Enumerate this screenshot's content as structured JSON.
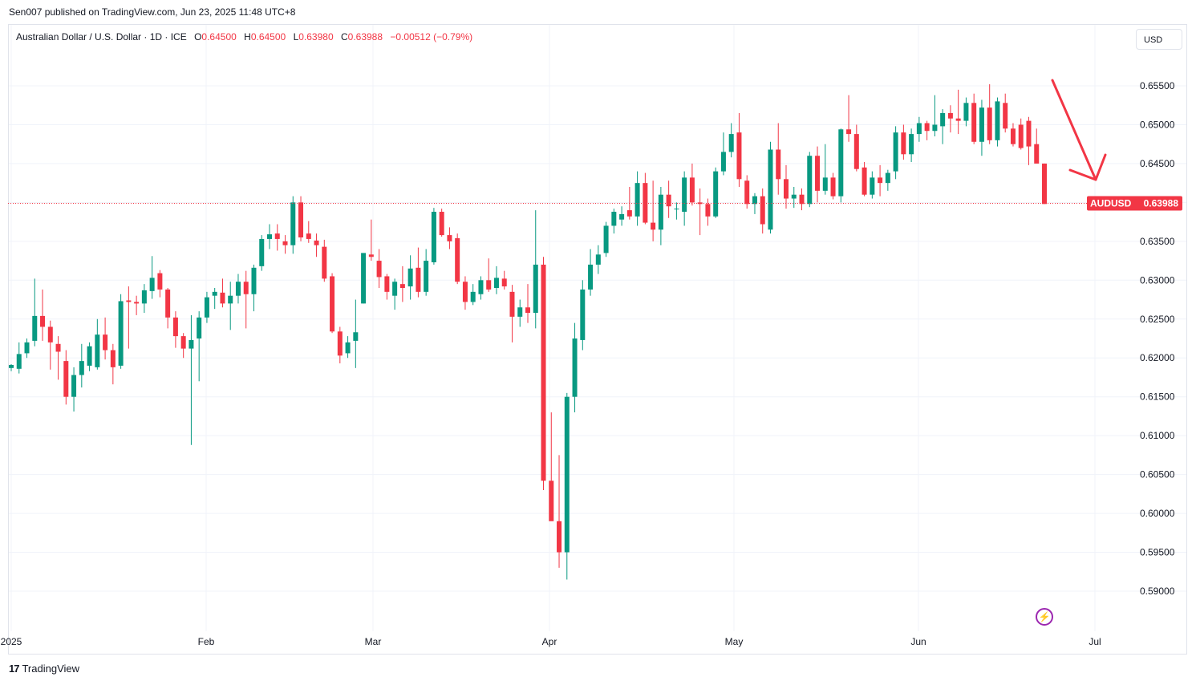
{
  "header": {
    "published_text": "Sen007 published on TradingView.com, Jun 23, 2025 11:48 UTC+8"
  },
  "legend": {
    "symbol_desc": "Australian Dollar / U.S. Dollar · 1D · ICE",
    "o_label": "O",
    "o_value": "0.64500",
    "h_label": "H",
    "h_value": "0.64500",
    "l_label": "L",
    "l_value": "0.63980",
    "c_label": "C",
    "c_value": "0.63988",
    "change": "−0.00512 (−0.79%)"
  },
  "currency_button": "USD",
  "price_tag": {
    "symbol": "AUDUSD",
    "price": "0.63988"
  },
  "footer": {
    "brand": "TradingView",
    "logo": "17"
  },
  "colors": {
    "up": "#089981",
    "down": "#f23645",
    "grid": "#f0f3fa",
    "annotation": "#f23645"
  },
  "chart_data": {
    "type": "candlestick",
    "symbol": "AUDUSD",
    "timeframe": "1D",
    "y_ticks": [
      0.59,
      0.595,
      0.6,
      0.605,
      0.61,
      0.615,
      0.62,
      0.625,
      0.63,
      0.635,
      0.64,
      0.645,
      0.65,
      0.655
    ],
    "y_tick_labels": [
      "0.59000",
      "0.59500",
      "0.60000",
      "0.60500",
      "0.61000",
      "0.61500",
      "0.62000",
      "0.62500",
      "0.63000",
      "0.63500",
      "0.64000",
      "0.64500",
      "0.65000",
      "0.65500"
    ],
    "ylim": [
      0.5875,
      0.6575
    ],
    "x_labels": [
      {
        "label": "2025",
        "date": "2025-01-01"
      },
      {
        "label": "Feb",
        "date": "2025-02-01"
      },
      {
        "label": "Mar",
        "date": "2025-03-01"
      },
      {
        "label": "Apr",
        "date": "2025-04-01"
      },
      {
        "label": "May",
        "date": "2025-05-01"
      },
      {
        "label": "Jun",
        "date": "2025-06-01"
      },
      {
        "label": "Jul",
        "date": "2025-07-01"
      }
    ],
    "last_price": 0.63988,
    "annotation": "down-arrow",
    "candles": [
      {
        "d": "2025-01-01",
        "o": 0.6187,
        "h": 0.6192,
        "l": 0.6183,
        "c": 0.6191
      },
      {
        "d": "2025-01-02",
        "o": 0.6186,
        "h": 0.622,
        "l": 0.618,
        "c": 0.6205
      },
      {
        "d": "2025-01-03",
        "o": 0.6206,
        "h": 0.6225,
        "l": 0.62,
        "c": 0.622
      },
      {
        "d": "2025-01-06",
        "o": 0.6222,
        "h": 0.6302,
        "l": 0.6215,
        "c": 0.6254
      },
      {
        "d": "2025-01-07",
        "o": 0.6254,
        "h": 0.6288,
        "l": 0.6222,
        "c": 0.624
      },
      {
        "d": "2025-01-08",
        "o": 0.624,
        "h": 0.6248,
        "l": 0.6185,
        "c": 0.622
      },
      {
        "d": "2025-01-09",
        "o": 0.6218,
        "h": 0.6228,
        "l": 0.6172,
        "c": 0.6208
      },
      {
        "d": "2025-01-10",
        "o": 0.6196,
        "h": 0.621,
        "l": 0.614,
        "c": 0.615
      },
      {
        "d": "2025-01-13",
        "o": 0.615,
        "h": 0.6188,
        "l": 0.6131,
        "c": 0.6178
      },
      {
        "d": "2025-01-14",
        "o": 0.6178,
        "h": 0.6218,
        "l": 0.6162,
        "c": 0.6196
      },
      {
        "d": "2025-01-15",
        "o": 0.619,
        "h": 0.622,
        "l": 0.6183,
        "c": 0.6215
      },
      {
        "d": "2025-01-16",
        "o": 0.6188,
        "h": 0.625,
        "l": 0.6185,
        "c": 0.623
      },
      {
        "d": "2025-01-17",
        "o": 0.623,
        "h": 0.6252,
        "l": 0.6198,
        "c": 0.621
      },
      {
        "d": "2025-01-20",
        "o": 0.621,
        "h": 0.6218,
        "l": 0.6166,
        "c": 0.6188
      },
      {
        "d": "2025-01-21",
        "o": 0.619,
        "h": 0.6282,
        "l": 0.6186,
        "c": 0.6273
      },
      {
        "d": "2025-01-22",
        "o": 0.6274,
        "h": 0.6292,
        "l": 0.6212,
        "c": 0.6272
      },
      {
        "d": "2025-01-23",
        "o": 0.6272,
        "h": 0.628,
        "l": 0.6255,
        "c": 0.627
      },
      {
        "d": "2025-01-24",
        "o": 0.627,
        "h": 0.6295,
        "l": 0.6258,
        "c": 0.6287
      },
      {
        "d": "2025-01-27",
        "o": 0.6286,
        "h": 0.6331,
        "l": 0.6276,
        "c": 0.6303
      },
      {
        "d": "2025-01-28",
        "o": 0.6309,
        "h": 0.6313,
        "l": 0.6278,
        "c": 0.6288
      },
      {
        "d": "2025-01-29",
        "o": 0.6288,
        "h": 0.629,
        "l": 0.6238,
        "c": 0.6252
      },
      {
        "d": "2025-01-30",
        "o": 0.6252,
        "h": 0.626,
        "l": 0.6213,
        "c": 0.6228
      },
      {
        "d": "2025-01-31",
        "o": 0.6228,
        "h": 0.6232,
        "l": 0.62,
        "c": 0.6212
      },
      {
        "d": "2025-02-03",
        "o": 0.6212,
        "h": 0.6255,
        "l": 0.6088,
        "c": 0.6223
      },
      {
        "d": "2025-02-04",
        "o": 0.6225,
        "h": 0.626,
        "l": 0.617,
        "c": 0.6252
      },
      {
        "d": "2025-02-05",
        "o": 0.6252,
        "h": 0.6285,
        "l": 0.6245,
        "c": 0.6278
      },
      {
        "d": "2025-02-06",
        "o": 0.628,
        "h": 0.629,
        "l": 0.6263,
        "c": 0.6285
      },
      {
        "d": "2025-02-07",
        "o": 0.6284,
        "h": 0.6302,
        "l": 0.6265,
        "c": 0.627
      },
      {
        "d": "2025-02-10",
        "o": 0.627,
        "h": 0.6298,
        "l": 0.6236,
        "c": 0.628
      },
      {
        "d": "2025-02-11",
        "o": 0.628,
        "h": 0.6308,
        "l": 0.627,
        "c": 0.6298
      },
      {
        "d": "2025-02-12",
        "o": 0.6298,
        "h": 0.6312,
        "l": 0.6238,
        "c": 0.6282
      },
      {
        "d": "2025-02-13",
        "o": 0.6282,
        "h": 0.632,
        "l": 0.626,
        "c": 0.6316
      },
      {
        "d": "2025-02-14",
        "o": 0.6318,
        "h": 0.6358,
        "l": 0.6312,
        "c": 0.6353
      },
      {
        "d": "2025-02-17",
        "o": 0.6353,
        "h": 0.6372,
        "l": 0.634,
        "c": 0.6359
      },
      {
        "d": "2025-02-18",
        "o": 0.636,
        "h": 0.6372,
        "l": 0.6338,
        "c": 0.6353
      },
      {
        "d": "2025-02-19",
        "o": 0.635,
        "h": 0.6358,
        "l": 0.6334,
        "c": 0.6345
      },
      {
        "d": "2025-02-20",
        "o": 0.6345,
        "h": 0.6408,
        "l": 0.6334,
        "c": 0.64
      },
      {
        "d": "2025-02-21",
        "o": 0.64,
        "h": 0.6408,
        "l": 0.635,
        "c": 0.6355
      },
      {
        "d": "2025-02-24",
        "o": 0.636,
        "h": 0.6376,
        "l": 0.6348,
        "c": 0.6353
      },
      {
        "d": "2025-02-25",
        "o": 0.6351,
        "h": 0.636,
        "l": 0.633,
        "c": 0.6345
      },
      {
        "d": "2025-02-26",
        "o": 0.6343,
        "h": 0.6352,
        "l": 0.6298,
        "c": 0.6302
      },
      {
        "d": "2025-02-27",
        "o": 0.6305,
        "h": 0.6309,
        "l": 0.6232,
        "c": 0.6234
      },
      {
        "d": "2025-02-28",
        "o": 0.6234,
        "h": 0.624,
        "l": 0.6193,
        "c": 0.6203
      },
      {
        "d": "2025-03-03",
        "o": 0.6206,
        "h": 0.6228,
        "l": 0.62,
        "c": 0.622
      },
      {
        "d": "2025-03-04",
        "o": 0.6222,
        "h": 0.6275,
        "l": 0.6187,
        "c": 0.6233
      },
      {
        "d": "2025-03-05",
        "o": 0.627,
        "h": 0.6332,
        "l": 0.627,
        "c": 0.6335
      },
      {
        "d": "2025-03-06",
        "o": 0.6333,
        "h": 0.6378,
        "l": 0.6325,
        "c": 0.633
      },
      {
        "d": "2025-03-07",
        "o": 0.6325,
        "h": 0.634,
        "l": 0.629,
        "c": 0.6304
      },
      {
        "d": "2025-03-10",
        "o": 0.6305,
        "h": 0.6308,
        "l": 0.6275,
        "c": 0.6285
      },
      {
        "d": "2025-03-11",
        "o": 0.628,
        "h": 0.6302,
        "l": 0.6262,
        "c": 0.6298
      },
      {
        "d": "2025-03-12",
        "o": 0.6295,
        "h": 0.6318,
        "l": 0.6272,
        "c": 0.629
      },
      {
        "d": "2025-03-13",
        "o": 0.6292,
        "h": 0.6332,
        "l": 0.6275,
        "c": 0.6315
      },
      {
        "d": "2025-03-14",
        "o": 0.6316,
        "h": 0.6342,
        "l": 0.6278,
        "c": 0.6285
      },
      {
        "d": "2025-03-17",
        "o": 0.6285,
        "h": 0.634,
        "l": 0.628,
        "c": 0.6325
      },
      {
        "d": "2025-03-18",
        "o": 0.6323,
        "h": 0.6393,
        "l": 0.632,
        "c": 0.6388
      },
      {
        "d": "2025-03-19",
        "o": 0.6388,
        "h": 0.6392,
        "l": 0.6356,
        "c": 0.6358
      },
      {
        "d": "2025-03-20",
        "o": 0.6358,
        "h": 0.6368,
        "l": 0.634,
        "c": 0.635
      },
      {
        "d": "2025-03-21",
        "o": 0.6354,
        "h": 0.636,
        "l": 0.6295,
        "c": 0.6298
      },
      {
        "d": "2025-03-24",
        "o": 0.6298,
        "h": 0.6305,
        "l": 0.6262,
        "c": 0.6272
      },
      {
        "d": "2025-03-25",
        "o": 0.6272,
        "h": 0.6295,
        "l": 0.6268,
        "c": 0.6285
      },
      {
        "d": "2025-03-26",
        "o": 0.6282,
        "h": 0.6305,
        "l": 0.6275,
        "c": 0.63
      },
      {
        "d": "2025-03-27",
        "o": 0.63,
        "h": 0.6328,
        "l": 0.6285,
        "c": 0.6288
      },
      {
        "d": "2025-03-28",
        "o": 0.629,
        "h": 0.6318,
        "l": 0.6282,
        "c": 0.6303
      },
      {
        "d": "2025-03-31",
        "o": 0.6302,
        "h": 0.6312,
        "l": 0.6288,
        "c": 0.6292
      },
      {
        "d": "2025-04-01",
        "o": 0.6285,
        "h": 0.6294,
        "l": 0.622,
        "c": 0.6253
      },
      {
        "d": "2025-04-02",
        "o": 0.6253,
        "h": 0.6275,
        "l": 0.624,
        "c": 0.6265
      },
      {
        "d": "2025-04-03",
        "o": 0.6265,
        "h": 0.6295,
        "l": 0.6245,
        "c": 0.6258
      },
      {
        "d": "2025-04-04",
        "o": 0.6258,
        "h": 0.639,
        "l": 0.6238,
        "c": 0.632
      },
      {
        "d": "2025-04-07",
        "o": 0.632,
        "h": 0.633,
        "l": 0.603,
        "c": 0.6042
      },
      {
        "d": "2025-04-08",
        "o": 0.6042,
        "h": 0.613,
        "l": 0.5995,
        "c": 0.599
      },
      {
        "d": "2025-04-09",
        "o": 0.599,
        "h": 0.6075,
        "l": 0.593,
        "c": 0.595
      },
      {
        "d": "2025-04-10",
        "o": 0.595,
        "h": 0.6155,
        "l": 0.5915,
        "c": 0.615
      },
      {
        "d": "2025-04-11",
        "o": 0.615,
        "h": 0.6245,
        "l": 0.613,
        "c": 0.6225
      },
      {
        "d": "2025-04-14",
        "o": 0.6223,
        "h": 0.63,
        "l": 0.621,
        "c": 0.6288
      },
      {
        "d": "2025-04-15",
        "o": 0.6288,
        "h": 0.634,
        "l": 0.628,
        "c": 0.632
      },
      {
        "d": "2025-04-16",
        "o": 0.632,
        "h": 0.6345,
        "l": 0.6308,
        "c": 0.6333
      },
      {
        "d": "2025-04-17",
        "o": 0.6335,
        "h": 0.6375,
        "l": 0.633,
        "c": 0.637
      },
      {
        "d": "2025-04-18",
        "o": 0.637,
        "h": 0.6392,
        "l": 0.636,
        "c": 0.6388
      },
      {
        "d": "2025-04-21",
        "o": 0.6378,
        "h": 0.6395,
        "l": 0.637,
        "c": 0.6385
      },
      {
        "d": "2025-04-22",
        "o": 0.639,
        "h": 0.642,
        "l": 0.6378,
        "c": 0.6382
      },
      {
        "d": "2025-04-23",
        "o": 0.6382,
        "h": 0.644,
        "l": 0.637,
        "c": 0.6425
      },
      {
        "d": "2025-04-24",
        "o": 0.6425,
        "h": 0.6438,
        "l": 0.6372,
        "c": 0.6374
      },
      {
        "d": "2025-04-25",
        "o": 0.6374,
        "h": 0.6428,
        "l": 0.635,
        "c": 0.6365
      },
      {
        "d": "2025-04-28",
        "o": 0.6365,
        "h": 0.642,
        "l": 0.6345,
        "c": 0.641
      },
      {
        "d": "2025-04-29",
        "o": 0.641,
        "h": 0.6428,
        "l": 0.638,
        "c": 0.6395
      },
      {
        "d": "2025-04-30",
        "o": 0.6392,
        "h": 0.64,
        "l": 0.6378,
        "c": 0.6392
      },
      {
        "d": "2025-05-01",
        "o": 0.6388,
        "h": 0.644,
        "l": 0.637,
        "c": 0.6432
      },
      {
        "d": "2025-05-02",
        "o": 0.6432,
        "h": 0.645,
        "l": 0.6396,
        "c": 0.64
      },
      {
        "d": "2025-05-05",
        "o": 0.64,
        "h": 0.6418,
        "l": 0.6358,
        "c": 0.6398
      },
      {
        "d": "2025-05-06",
        "o": 0.6398,
        "h": 0.6405,
        "l": 0.637,
        "c": 0.6382
      },
      {
        "d": "2025-05-07",
        "o": 0.6382,
        "h": 0.6445,
        "l": 0.638,
        "c": 0.644
      },
      {
        "d": "2025-05-08",
        "o": 0.644,
        "h": 0.649,
        "l": 0.6435,
        "c": 0.6465
      },
      {
        "d": "2025-05-09",
        "o": 0.6465,
        "h": 0.6502,
        "l": 0.6458,
        "c": 0.6488
      },
      {
        "d": "2025-05-12",
        "o": 0.649,
        "h": 0.6515,
        "l": 0.642,
        "c": 0.643
      },
      {
        "d": "2025-05-13",
        "o": 0.6428,
        "h": 0.6435,
        "l": 0.6392,
        "c": 0.6398
      },
      {
        "d": "2025-05-14",
        "o": 0.6398,
        "h": 0.6412,
        "l": 0.6385,
        "c": 0.6408
      },
      {
        "d": "2025-05-15",
        "o": 0.6408,
        "h": 0.6418,
        "l": 0.636,
        "c": 0.6372
      },
      {
        "d": "2025-05-16",
        "o": 0.6365,
        "h": 0.6478,
        "l": 0.636,
        "c": 0.6468
      },
      {
        "d": "2025-05-19",
        "o": 0.6468,
        "h": 0.6502,
        "l": 0.641,
        "c": 0.643
      },
      {
        "d": "2025-05-20",
        "o": 0.643,
        "h": 0.6448,
        "l": 0.6392,
        "c": 0.6405
      },
      {
        "d": "2025-05-21",
        "o": 0.6405,
        "h": 0.642,
        "l": 0.6393,
        "c": 0.641
      },
      {
        "d": "2025-05-22",
        "o": 0.641,
        "h": 0.6418,
        "l": 0.639,
        "c": 0.6398
      },
      {
        "d": "2025-05-23",
        "o": 0.6398,
        "h": 0.6465,
        "l": 0.6394,
        "c": 0.646
      },
      {
        "d": "2025-05-26",
        "o": 0.646,
        "h": 0.6472,
        "l": 0.64,
        "c": 0.6415
      },
      {
        "d": "2025-05-27",
        "o": 0.6415,
        "h": 0.6475,
        "l": 0.641,
        "c": 0.6432
      },
      {
        "d": "2025-05-28",
        "o": 0.6432,
        "h": 0.6438,
        "l": 0.6404,
        "c": 0.6408
      },
      {
        "d": "2025-05-29",
        "o": 0.6408,
        "h": 0.6495,
        "l": 0.64,
        "c": 0.6494
      },
      {
        "d": "2025-05-30",
        "o": 0.6494,
        "h": 0.6538,
        "l": 0.6478,
        "c": 0.6488
      },
      {
        "d": "2025-06-02",
        "o": 0.6488,
        "h": 0.65,
        "l": 0.644,
        "c": 0.6443
      },
      {
        "d": "2025-06-03",
        "o": 0.6445,
        "h": 0.6452,
        "l": 0.6408,
        "c": 0.641
      },
      {
        "d": "2025-06-04",
        "o": 0.641,
        "h": 0.644,
        "l": 0.6405,
        "c": 0.6432
      },
      {
        "d": "2025-06-05",
        "o": 0.6432,
        "h": 0.6448,
        "l": 0.6408,
        "c": 0.6425
      },
      {
        "d": "2025-06-06",
        "o": 0.6425,
        "h": 0.6442,
        "l": 0.6415,
        "c": 0.6438
      },
      {
        "d": "2025-06-09",
        "o": 0.644,
        "h": 0.6498,
        "l": 0.643,
        "c": 0.649
      },
      {
        "d": "2025-06-10",
        "o": 0.649,
        "h": 0.65,
        "l": 0.6455,
        "c": 0.6462
      },
      {
        "d": "2025-06-11",
        "o": 0.6462,
        "h": 0.6495,
        "l": 0.6452,
        "c": 0.6488
      },
      {
        "d": "2025-06-12",
        "o": 0.6488,
        "h": 0.651,
        "l": 0.6478,
        "c": 0.6502
      },
      {
        "d": "2025-06-13",
        "o": 0.6502,
        "h": 0.6505,
        "l": 0.648,
        "c": 0.6492
      },
      {
        "d": "2025-06-16",
        "o": 0.6492,
        "h": 0.6538,
        "l": 0.6485,
        "c": 0.65
      },
      {
        "d": "2025-06-17",
        "o": 0.6498,
        "h": 0.652,
        "l": 0.6475,
        "c": 0.6515
      },
      {
        "d": "2025-06-18",
        "o": 0.6515,
        "h": 0.6525,
        "l": 0.649,
        "c": 0.6508
      },
      {
        "d": "2025-06-19",
        "o": 0.6508,
        "h": 0.6545,
        "l": 0.6488,
        "c": 0.6505
      },
      {
        "d": "2025-06-20",
        "o": 0.6505,
        "h": 0.6535,
        "l": 0.6498,
        "c": 0.6528
      },
      {
        "d": "2025-06-23",
        "o": 0.6528,
        "h": 0.654,
        "l": 0.6475,
        "c": 0.6478
      },
      {
        "d": "2025-06-24",
        "o": 0.6478,
        "h": 0.6532,
        "l": 0.646,
        "c": 0.6522
      },
      {
        "d": "2025-06-25",
        "o": 0.6522,
        "h": 0.6552,
        "l": 0.6475,
        "c": 0.648
      },
      {
        "d": "2025-06-26",
        "o": 0.648,
        "h": 0.6535,
        "l": 0.6472,
        "c": 0.653
      },
      {
        "d": "2025-06-27",
        "o": 0.6528,
        "h": 0.654,
        "l": 0.649,
        "c": 0.6495
      },
      {
        "d": "2025-06-30",
        "o": 0.6495,
        "h": 0.6502,
        "l": 0.6472,
        "c": 0.6475
      },
      {
        "d": "2025-07-01",
        "o": 0.65,
        "h": 0.6508,
        "l": 0.6468,
        "c": 0.647
      },
      {
        "d": "2025-07-02",
        "o": 0.6505,
        "h": 0.651,
        "l": 0.6448,
        "c": 0.6472
      },
      {
        "d": "2025-07-03",
        "o": 0.6475,
        "h": 0.6495,
        "l": 0.6455,
        "c": 0.645
      },
      {
        "d": "2025-07-04",
        "o": 0.645,
        "h": 0.645,
        "l": 0.6398,
        "c": 0.6398
      }
    ]
  }
}
